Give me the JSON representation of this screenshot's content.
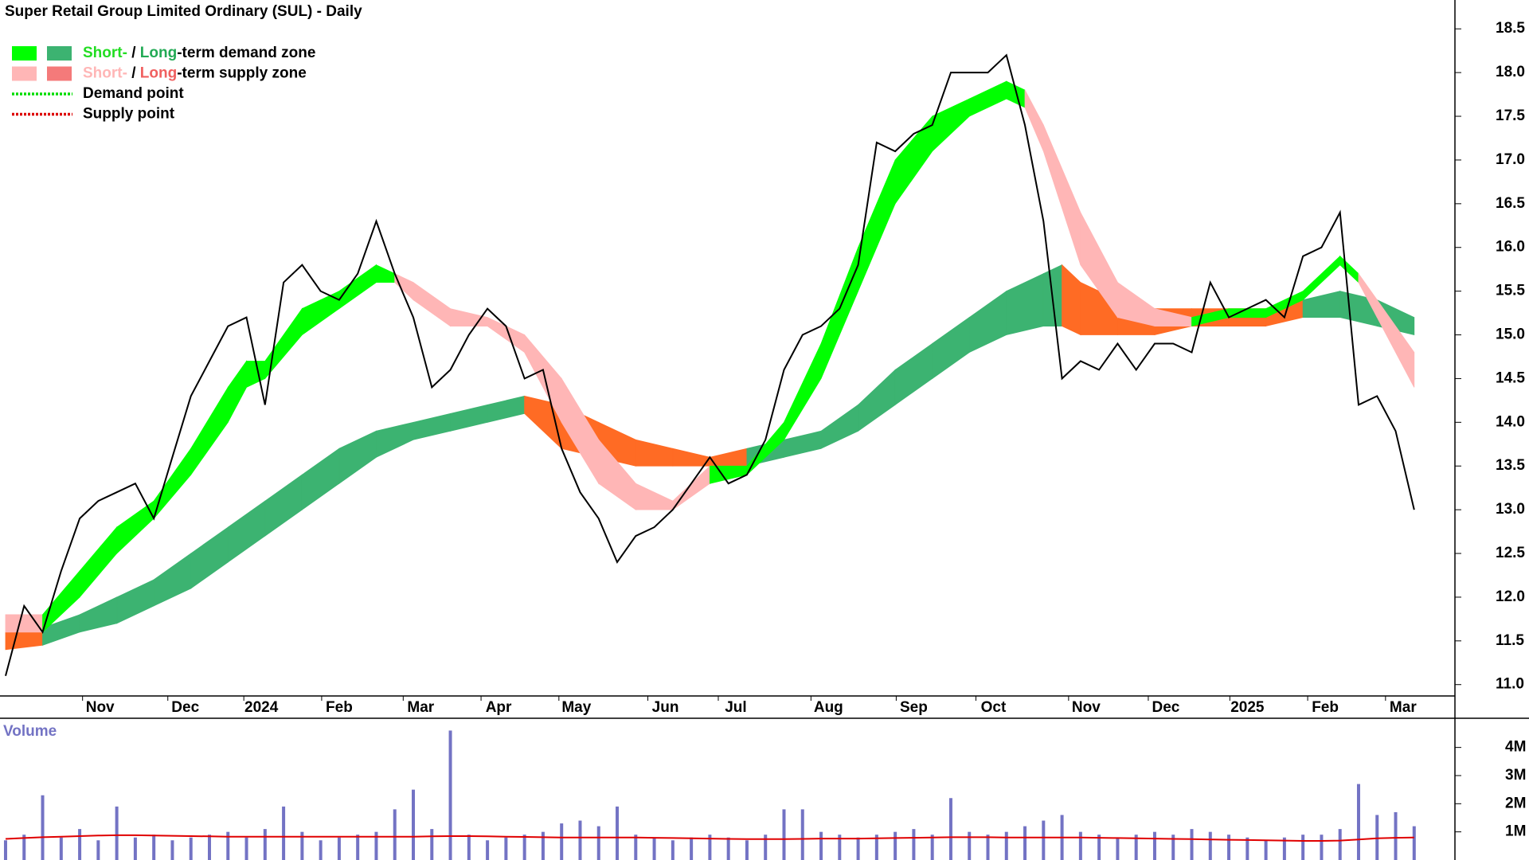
{
  "chart_data": [
    {
      "type": "line",
      "title": "Super Retail Group Limited Ordinary (SUL) - Daily",
      "color": "#000000",
      "values": [
        11.1,
        11.9,
        11.6,
        12.3,
        12.9,
        13.1,
        13.2,
        13.3,
        12.9,
        13.6,
        14.3,
        14.7,
        15.1,
        15.2,
        14.2,
        15.6,
        15.8,
        15.5,
        15.4,
        15.7,
        16.3,
        15.7,
        15.2,
        14.4,
        14.6,
        15.0,
        15.3,
        15.1,
        14.5,
        14.6,
        13.7,
        13.2,
        12.9,
        12.4,
        12.7,
        12.8,
        13.0,
        13.3,
        13.6,
        13.3,
        13.4,
        13.8,
        14.6,
        15.0,
        15.1,
        15.3,
        15.8,
        17.2,
        17.1,
        17.3,
        17.4,
        18.0,
        18.0,
        18.0,
        18.2,
        17.4,
        16.3,
        14.5,
        14.7,
        14.6,
        14.9,
        14.6,
        14.9,
        14.9,
        14.8,
        15.6,
        15.2,
        15.3,
        15.4,
        15.2,
        15.9,
        16.0,
        16.4,
        14.2,
        14.3,
        13.9,
        13.0
      ],
      "bands": [
        {
          "x": [
            0,
            2,
            4,
            6,
            8,
            10,
            12,
            13,
            14,
            16,
            18,
            20,
            21,
            22,
            24,
            26,
            28,
            30,
            32,
            34,
            36,
            38,
            40,
            42,
            44,
            46,
            48,
            50,
            52,
            54,
            55,
            56,
            58,
            60,
            62,
            64,
            66,
            68,
            70,
            72,
            73,
            74,
            76
          ],
          "lower": [
            11.6,
            11.6,
            12.0,
            12.5,
            12.9,
            13.4,
            14.0,
            14.4,
            14.5,
            15.0,
            15.3,
            15.6,
            15.6,
            15.4,
            15.1,
            15.1,
            14.8,
            14.0,
            13.3,
            13.0,
            13.0,
            13.3,
            13.4,
            13.8,
            14.5,
            15.5,
            16.5,
            17.1,
            17.5,
            17.7,
            17.6,
            17.1,
            15.8,
            15.2,
            15.1,
            15.1,
            15.2,
            15.2,
            15.4,
            15.8,
            15.6,
            15.2,
            14.4
          ],
          "upper": [
            11.8,
            11.8,
            12.3,
            12.8,
            13.1,
            13.7,
            14.4,
            14.7,
            14.7,
            15.3,
            15.5,
            15.8,
            15.7,
            15.6,
            15.3,
            15.2,
            15.0,
            14.5,
            13.8,
            13.3,
            13.1,
            13.5,
            13.5,
            14.0,
            14.9,
            16.0,
            17.0,
            17.5,
            17.7,
            17.9,
            17.8,
            17.4,
            16.4,
            15.6,
            15.3,
            15.2,
            15.3,
            15.3,
            15.5,
            15.9,
            15.7,
            15.4,
            14.8
          ],
          "demand_color": "#00ff00",
          "supply_color": "#ffb6b6",
          "supply_ranges": [
            [
              0,
              2
            ],
            [
              21,
              38
            ],
            [
              55,
              64
            ],
            [
              73,
              76
            ]
          ]
        },
        {
          "x": [
            0,
            2,
            4,
            6,
            8,
            10,
            12,
            14,
            16,
            18,
            20,
            22,
            24,
            26,
            28,
            30,
            32,
            34,
            36,
            38,
            40,
            42,
            44,
            46,
            48,
            50,
            52,
            54,
            56,
            57,
            58,
            60,
            62,
            64,
            66,
            68,
            70,
            72,
            74,
            76
          ],
          "lower": [
            11.4,
            11.45,
            11.6,
            11.7,
            11.9,
            12.1,
            12.4,
            12.7,
            13.0,
            13.3,
            13.6,
            13.8,
            13.9,
            14.0,
            14.1,
            13.7,
            13.6,
            13.5,
            13.5,
            13.5,
            13.5,
            13.6,
            13.7,
            13.9,
            14.2,
            14.5,
            14.8,
            15.0,
            15.1,
            15.1,
            15.0,
            15.0,
            15.0,
            15.1,
            15.1,
            15.1,
            15.2,
            15.2,
            15.1,
            15.0
          ],
          "upper": [
            11.6,
            11.65,
            11.8,
            12.0,
            12.2,
            12.5,
            12.8,
            13.1,
            13.4,
            13.7,
            13.9,
            14.0,
            14.1,
            14.2,
            14.3,
            14.2,
            14.0,
            13.8,
            13.7,
            13.6,
            13.7,
            13.8,
            13.9,
            14.2,
            14.6,
            14.9,
            15.2,
            15.5,
            15.7,
            15.8,
            15.6,
            15.4,
            15.3,
            15.3,
            15.3,
            15.3,
            15.4,
            15.5,
            15.4,
            15.2
          ],
          "demand_color": "#3cb371",
          "supply_color": "#ff6b24",
          "supply_ranges": [
            [
              0,
              2
            ],
            [
              28,
              41
            ],
            [
              57,
              70
            ]
          ]
        }
      ],
      "legend": [
        {
          "swatches": [
            "#00ff00",
            "#3cb371"
          ],
          "parts": [
            {
              "text": "Short-",
              "color": "#22dd22"
            },
            {
              "text": " / ",
              "color": "#000000"
            },
            {
              "text": "Long",
              "color": "#22aa55"
            },
            {
              "text": "-term demand zone",
              "color": "#000000"
            }
          ]
        },
        {
          "swatches": [
            "#ffb6b6",
            "#f47a7a"
          ],
          "parts": [
            {
              "text": "Short-",
              "color": "#ffb6b6"
            },
            {
              "text": " / ",
              "color": "#000000"
            },
            {
              "text": "Long",
              "color": "#f06060"
            },
            {
              "text": "-term supply zone",
              "color": "#000000"
            }
          ]
        },
        {
          "line": "#00dd00",
          "parts": [
            {
              "text": "Demand point",
              "color": "#000000"
            }
          ]
        },
        {
          "line": "#dd0000",
          "parts": [
            {
              "text": "Supply point",
              "color": "#000000"
            }
          ]
        }
      ],
      "xlim": [
        -0.3,
        78.2
      ],
      "xticks": [
        {
          "value": 5.1,
          "label": "Nov"
        },
        {
          "value": 9.7,
          "label": "Dec"
        },
        {
          "value": 13.8,
          "label": "2024"
        },
        {
          "value": 18,
          "label": "Feb"
        },
        {
          "value": 22.4,
          "label": "Mar"
        },
        {
          "value": 26.6,
          "label": "Apr"
        },
        {
          "value": 30.8,
          "label": "May"
        },
        {
          "value": 35.6,
          "label": "Jun"
        },
        {
          "value": 39.4,
          "label": "Jul"
        },
        {
          "value": 44.4,
          "label": "Aug"
        },
        {
          "value": 49,
          "label": "Sep"
        },
        {
          "value": 53.3,
          "label": "Oct"
        },
        {
          "value": 58.3,
          "label": "Nov"
        },
        {
          "value": 62.6,
          "label": "Dec"
        },
        {
          "value": 67,
          "label": "2025"
        },
        {
          "value": 71.2,
          "label": "Feb"
        },
        {
          "value": 75.4,
          "label": "Mar"
        }
      ],
      "ylim": [
        10.87,
        18.83
      ],
      "yticks": [
        {
          "value": 11,
          "label": "11.0"
        },
        11.5,
        {
          "value": 12,
          "label": "12.0"
        },
        12.5,
        {
          "value": 13,
          "label": "13.0"
        },
        13.5,
        {
          "value": 14,
          "label": "14.0"
        },
        14.5,
        {
          "value": 15,
          "label": "15.0"
        },
        15.5,
        {
          "value": 16,
          "label": "16.0"
        },
        16.5,
        {
          "value": 17,
          "label": "17.0"
        },
        17.5,
        {
          "value": 18,
          "label": "18.0"
        },
        18.5
      ]
    },
    {
      "type": "bar",
      "title": "Volume",
      "color": "#7373c4",
      "average_color": "#e00000",
      "values": [
        700000,
        900000,
        2300000,
        800000,
        1100000,
        700000,
        1900000,
        800000,
        900000,
        700000,
        800000,
        900000,
        1000000,
        800000,
        1100000,
        1900000,
        1000000,
        700000,
        800000,
        900000,
        1000000,
        1800000,
        2500000,
        1100000,
        4600000,
        900000,
        700000,
        800000,
        900000,
        1000000,
        1300000,
        1400000,
        1200000,
        1900000,
        900000,
        800000,
        700000,
        800000,
        900000,
        800000,
        700000,
        900000,
        1800000,
        1800000,
        1000000,
        900000,
        800000,
        900000,
        1000000,
        1100000,
        900000,
        2200000,
        1000000,
        900000,
        1000000,
        1200000,
        1400000,
        1600000,
        1000000,
        900000,
        800000,
        900000,
        1000000,
        900000,
        1100000,
        1000000,
        900000,
        800000,
        700000,
        800000,
        900000,
        900000,
        1100000,
        2700000,
        1600000,
        1700000,
        1200000
      ],
      "average": [
        750000,
        780000,
        810000,
        830000,
        850000,
        870000,
        880000,
        880000,
        870000,
        860000,
        850000,
        840000,
        830000,
        830000,
        830000,
        830000,
        830000,
        830000,
        830000,
        830000,
        830000,
        830000,
        830000,
        840000,
        850000,
        850000,
        840000,
        830000,
        820000,
        810000,
        800000,
        800000,
        800000,
        800000,
        800000,
        790000,
        780000,
        770000,
        760000,
        750000,
        740000,
        740000,
        740000,
        750000,
        760000,
        760000,
        760000,
        770000,
        780000,
        790000,
        800000,
        810000,
        810000,
        810000,
        800000,
        800000,
        800000,
        800000,
        800000,
        790000,
        780000,
        770000,
        760000,
        750000,
        740000,
        730000,
        720000,
        710000,
        700000,
        690000,
        680000,
        680000,
        690000,
        730000,
        770000,
        790000,
        800000
      ],
      "ylim": [
        0,
        4980000
      ],
      "yticks": [
        {
          "value": 1000000,
          "label": "1M"
        },
        {
          "value": 2000000,
          "label": "2M"
        },
        {
          "value": 3000000,
          "label": "3M"
        },
        {
          "value": 4000000,
          "label": "4M"
        }
      ]
    }
  ]
}
